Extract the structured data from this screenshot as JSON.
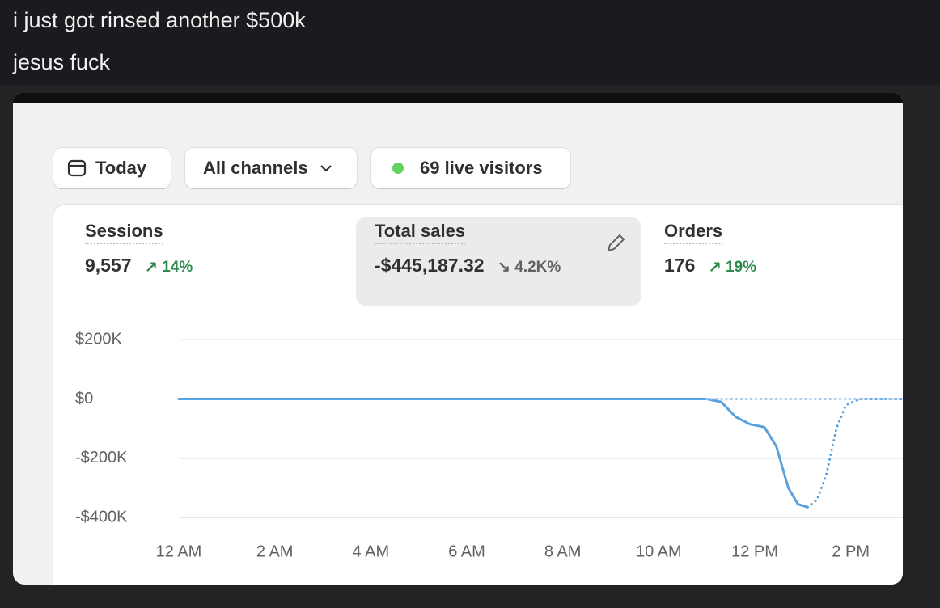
{
  "post": {
    "lines": [
      "i just got rinsed another $500k",
      "jesus fuck"
    ]
  },
  "toolbar": {
    "date": "Today",
    "channels": "All channels",
    "live": "69 live visitors"
  },
  "metrics": [
    {
      "label": "Sessions",
      "value": "9,557",
      "change": "14%"
    },
    {
      "label": "Total sales",
      "value": "-$445,187.32",
      "change": "4.2K%"
    },
    {
      "label": "Orders",
      "value": "176",
      "change": "19%"
    }
  ],
  "chart_data": {
    "type": "line",
    "xlim": [
      0,
      15.1
    ],
    "xticks": [
      {
        "value": 0,
        "label": "12 AM"
      },
      {
        "value": 2,
        "label": "2 AM"
      },
      {
        "value": 4,
        "label": "4 AM"
      },
      {
        "value": 6,
        "label": "6 AM"
      },
      {
        "value": 8,
        "label": "8 AM"
      },
      {
        "value": 10,
        "label": "10 AM"
      },
      {
        "value": 12,
        "label": "12 PM"
      },
      {
        "value": 14,
        "label": "2 PM"
      }
    ],
    "ylim": [
      -440000,
      200000
    ],
    "yticks": [
      {
        "value": 200000,
        "label": "$200K"
      },
      {
        "value": 0,
        "label": "$0"
      },
      {
        "value": -200000,
        "label": "-$200K"
      },
      {
        "value": -400000,
        "label": "-$400K"
      }
    ],
    "grid": true,
    "series": [
      {
        "color": "#5aa1e0",
        "style": "solid",
        "x": [
          0,
          1,
          2,
          3,
          4,
          5,
          6,
          7,
          8,
          9,
          10,
          11,
          11.3,
          11.6,
          11.9,
          12.2,
          12.45,
          12.7,
          12.9,
          13.1
        ],
        "values": [
          0,
          0,
          0,
          0,
          0,
          0,
          0,
          0,
          0,
          0,
          0,
          0,
          -10000,
          -60000,
          -85000,
          -95000,
          -160000,
          -300000,
          -355000,
          -365000
        ]
      },
      {
        "color": "#9cc6ee",
        "style": "dotted",
        "x": [
          11,
          12,
          13,
          14,
          15.1
        ],
        "values": [
          0,
          0,
          0,
          0,
          0
        ]
      },
      {
        "color": "#5aa1e0",
        "style": "dotted",
        "x": [
          13.1,
          13.3,
          13.5,
          13.7,
          13.9,
          14.2,
          15.1
        ],
        "values": [
          -365000,
          -340000,
          -250000,
          -100000,
          -20000,
          0,
          0
        ]
      }
    ]
  }
}
